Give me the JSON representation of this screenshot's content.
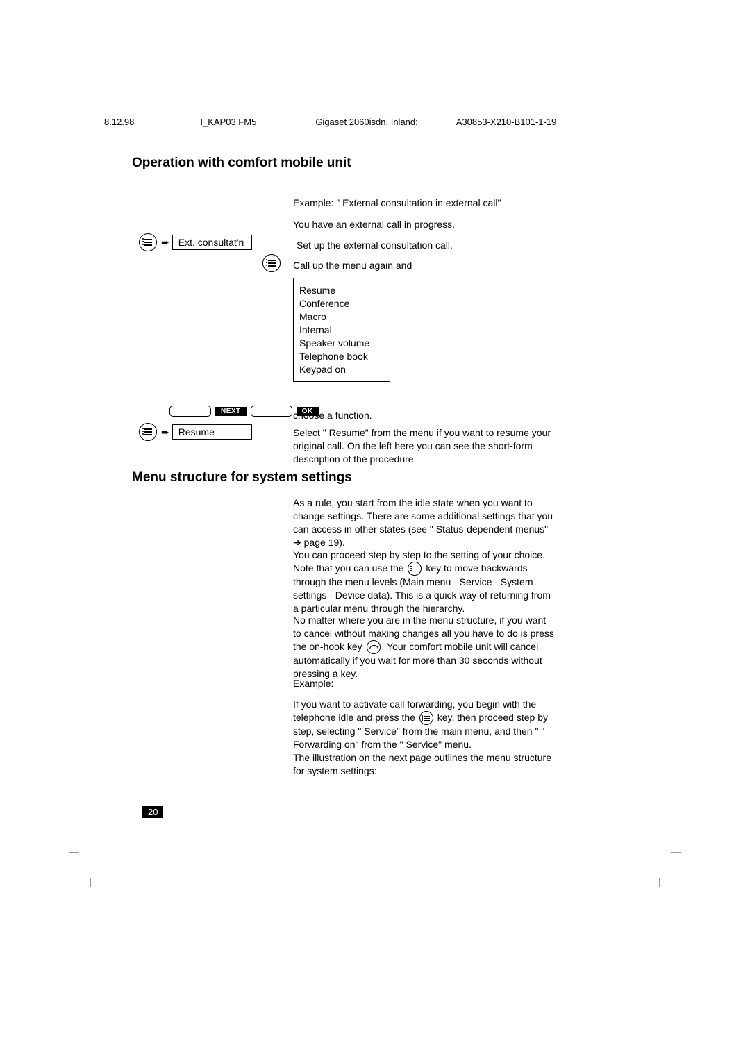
{
  "header": {
    "date": "8.12.98",
    "file": "I_KAP03.FM5",
    "title": "Gigaset 2060isdn, Inland:",
    "code": "A30853-X210-B101-1-19"
  },
  "titles": {
    "section1": "Operation with comfort mobile unit",
    "section2": "Menu structure for system settings"
  },
  "texts": {
    "example1": "Example: \" External consultation in external call\"",
    "external": "You have an external call in progress.",
    "setup": "Set up the external consultation call.",
    "callup": "Call up the menu again and",
    "choose": "choose a function.",
    "select": "Select \" Resume\" from the menu if you want to resume your original call. On the left here you can see the short-form description of the procedure."
  },
  "boxed": {
    "ext": "Ext. consultat'n",
    "resume": "Resume"
  },
  "menu_list": [
    "Resume",
    "Conference",
    "Macro",
    "Internal",
    "Speaker volume",
    "Telephone book",
    "Keypad on"
  ],
  "softkeys": {
    "next": "NEXT",
    "ok": "OK"
  },
  "paragraphs": {
    "p1_a": "As a rule, you start from the idle state when you want to change settings. There are some additional settings that you can access in other states (see \" Status-dependent menus\" ",
    "p1_arrow": "➔",
    "p1_b": " page 19).",
    "p2_a": "You can proceed step by step to the setting of your choice. Note that you can use the ",
    "p2_b": " key to move backwards through the menu levels (Main menu - Service - System settings - Device data). This is a quick way of returning from a particular menu through the hierarchy.",
    "p3_a": "No matter where you are in the menu structure, if you want to cancel without making changes all you have to do is press the on-hook key ",
    "p3_b": ". Your comfort mobile unit will cancel automatically if you wait for more than 30 seconds without pressing a key.",
    "p4": "Example:",
    "p5_a": "If you want to activate call forwarding, you begin with the telephone idle and press the ",
    "p5_b": " key, then proceed step by step, selecting \" Service\" from the main menu, and then \" \" Forwarding on\" from the \" Service\" menu.",
    "p6": "The illustration on the next page outlines the menu structure for system settings:"
  },
  "page_number": "20"
}
